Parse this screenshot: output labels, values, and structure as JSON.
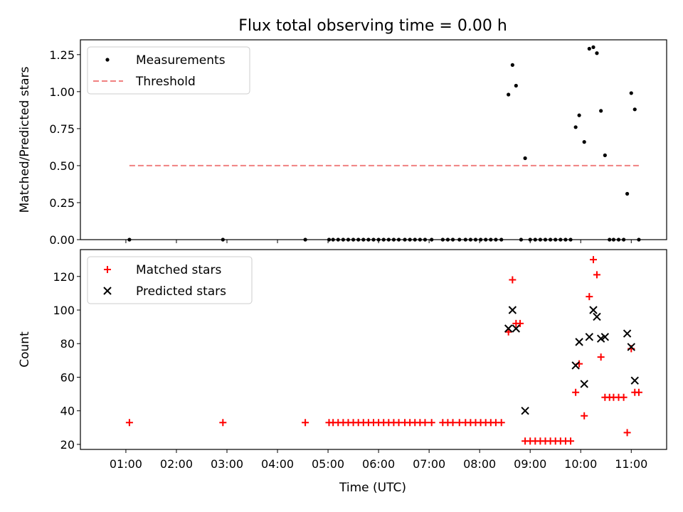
{
  "chart_data": {
    "title": "Flux total observing time = 0.00 h",
    "xlabel": "Time (UTC)",
    "x_ticks": [
      "01:00",
      "02:00",
      "03:00",
      "04:00",
      "05:00",
      "06:00",
      "07:00",
      "08:00",
      "09:00",
      "10:00",
      "11:00"
    ],
    "xlim_hours": [
      0.1,
      11.7
    ],
    "panels": [
      {
        "type": "scatter",
        "ylabel": "Matched/Predicted stars",
        "ylim": [
          0,
          1.35
        ],
        "y_ticks": [
          "0.00",
          "0.25",
          "0.50",
          "0.75",
          "1.00",
          "1.25"
        ],
        "legend": "top-left",
        "series": [
          {
            "name": "Measurements",
            "marker": "dot",
            "color": "#000000",
            "x_hours": [
              1.07,
              2.92,
              4.55,
              5.02,
              5.1,
              5.2,
              5.3,
              5.4,
              5.5,
              5.6,
              5.7,
              5.8,
              5.9,
              6.0,
              6.1,
              6.2,
              6.3,
              6.4,
              6.52,
              6.62,
              6.72,
              6.82,
              6.92,
              7.05,
              7.27,
              7.37,
              7.47,
              7.6,
              7.72,
              7.82,
              7.92,
              8.02,
              8.12,
              8.22,
              8.32,
              8.43,
              8.57,
              8.65,
              8.72,
              8.82,
              8.9,
              9.0,
              9.1,
              9.2,
              9.3,
              9.4,
              9.5,
              9.6,
              9.7,
              9.8,
              9.9,
              9.97,
              10.07,
              10.17,
              10.25,
              10.32,
              10.4,
              10.48,
              10.57,
              10.65,
              10.75,
              10.85,
              10.92,
              11.0,
              11.07,
              11.15
            ],
            "y": [
              0,
              0,
              0,
              0,
              0,
              0,
              0,
              0,
              0,
              0,
              0,
              0,
              0,
              0,
              0,
              0,
              0,
              0,
              0,
              0,
              0,
              0,
              0,
              0,
              0,
              0,
              0,
              0,
              0,
              0,
              0,
              0,
              0,
              0,
              0,
              0,
              0.98,
              1.18,
              1.04,
              0,
              0.55,
              0,
              0,
              0,
              0,
              0,
              0,
              0,
              0,
              0,
              0.76,
              0.84,
              0.66,
              1.29,
              1.3,
              1.26,
              0.87,
              0.57,
              0,
              0,
              0,
              0,
              0.31,
              0.99,
              0.88,
              0
            ]
          },
          {
            "name": "Threshold",
            "marker": "dashed-line",
            "color": "#f08080",
            "x_hours": [
              1.07,
              11.15
            ],
            "y": [
              0.5,
              0.5
            ]
          }
        ]
      },
      {
        "type": "scatter",
        "ylabel": "Count",
        "ylim": [
          17,
          136
        ],
        "y_ticks": [
          "20",
          "40",
          "60",
          "80",
          "100",
          "120"
        ],
        "legend": "top-left",
        "series": [
          {
            "name": "Matched stars",
            "marker": "plus",
            "color": "#ff0000",
            "x_hours": [
              1.07,
              2.92,
              4.55,
              5.02,
              5.1,
              5.2,
              5.3,
              5.4,
              5.5,
              5.6,
              5.7,
              5.8,
              5.9,
              6.0,
              6.1,
              6.2,
              6.3,
              6.4,
              6.52,
              6.62,
              6.72,
              6.82,
              6.92,
              7.05,
              7.27,
              7.37,
              7.47,
              7.6,
              7.72,
              7.82,
              7.92,
              8.02,
              8.12,
              8.22,
              8.32,
              8.43,
              8.57,
              8.65,
              8.72,
              8.8,
              8.9,
              9.0,
              9.1,
              9.2,
              9.3,
              9.4,
              9.5,
              9.6,
              9.7,
              9.8,
              9.9,
              9.97,
              10.07,
              10.17,
              10.25,
              10.32,
              10.4,
              10.48,
              10.57,
              10.65,
              10.75,
              10.85,
              10.92,
              11.0,
              11.07,
              11.15
            ],
            "y": [
              33,
              33,
              33,
              33,
              33,
              33,
              33,
              33,
              33,
              33,
              33,
              33,
              33,
              33,
              33,
              33,
              33,
              33,
              33,
              33,
              33,
              33,
              33,
              33,
              33,
              33,
              33,
              33,
              33,
              33,
              33,
              33,
              33,
              33,
              33,
              33,
              87,
              118,
              92,
              92,
              22,
              22,
              22,
              22,
              22,
              22,
              22,
              22,
              22,
              22,
              51,
              68,
              37,
              108,
              130,
              121,
              72,
              48,
              48,
              48,
              48,
              48,
              27,
              77,
              51,
              51
            ]
          },
          {
            "name": "Predicted stars",
            "marker": "x",
            "color": "#000000",
            "x_hours": [
              8.57,
              8.65,
              8.72,
              8.9,
              9.9,
              9.97,
              10.07,
              10.17,
              10.25,
              10.32,
              10.4,
              10.48,
              10.92,
              11.0,
              11.07
            ],
            "y": [
              89,
              100,
              89,
              40,
              67,
              81,
              56,
              84,
              100,
              96,
              83,
              84,
              86,
              78,
              58
            ]
          }
        ]
      }
    ]
  }
}
